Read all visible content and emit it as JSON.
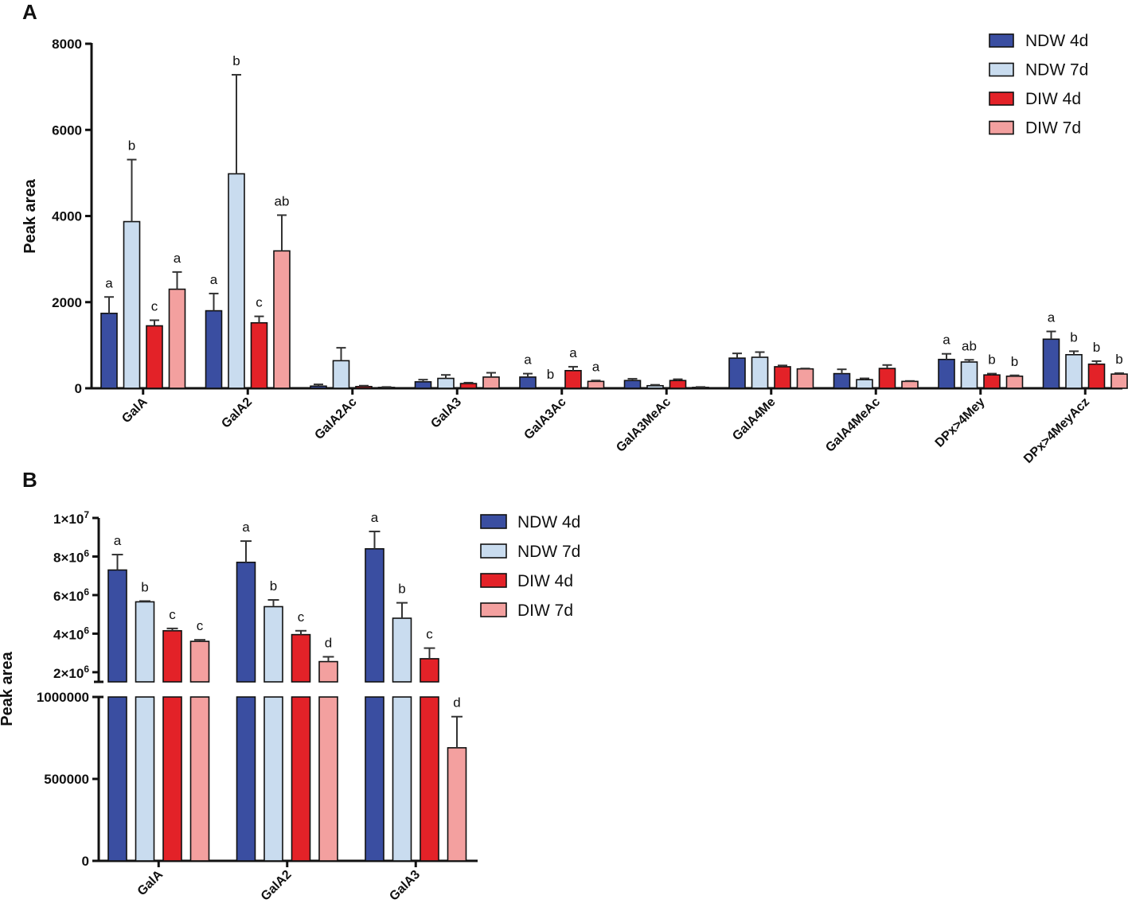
{
  "chart_data": [
    {
      "panel": "A",
      "type": "bar",
      "ylabel": "Peak area",
      "ylim": [
        0,
        8000
      ],
      "yticks": [
        "0",
        "2000",
        "4000",
        "6000",
        "8000"
      ],
      "yticks_values": [
        0,
        2000,
        4000,
        6000,
        8000
      ],
      "categories": [
        "GalA",
        "GalA2",
        "GalA2Ac",
        "GalA3",
        "GalA3Ac",
        "GalA3MeAc",
        "GalA4Me",
        "GalA4MeAc",
        "DPx>4Mey",
        "DPx>4MeyAcz"
      ],
      "legend_position": "top-right",
      "series": [
        {
          "name": "NDW 4d",
          "color": "#3a4ea1",
          "values": [
            1740,
            1800,
            50,
            150,
            260,
            180,
            700,
            340,
            670,
            1140
          ],
          "errors": [
            380,
            400,
            40,
            50,
            80,
            40,
            110,
            100,
            130,
            180
          ],
          "labels": [
            "a",
            "a",
            "",
            "",
            "a",
            "",
            "",
            "",
            "a",
            "a"
          ]
        },
        {
          "name": "NDW 7d",
          "color": "#c9dcef",
          "values": [
            3870,
            4980,
            640,
            230,
            0,
            60,
            720,
            200,
            610,
            780
          ],
          "errors": [
            1440,
            2300,
            300,
            80,
            0,
            20,
            120,
            30,
            50,
            80
          ],
          "labels": [
            "b",
            "b",
            "",
            "",
            "b",
            "",
            "",
            "",
            "ab",
            "b"
          ]
        },
        {
          "name": "DIW 4d",
          "color": "#e32228",
          "values": [
            1450,
            1520,
            40,
            110,
            410,
            180,
            500,
            460,
            310,
            560
          ],
          "errors": [
            130,
            150,
            20,
            20,
            90,
            30,
            30,
            80,
            30,
            70
          ],
          "labels": [
            "c",
            "c",
            "",
            "",
            "a",
            "",
            "",
            "",
            "b",
            "b"
          ]
        },
        {
          "name": "DIW 7d",
          "color": "#f3a09f",
          "values": [
            2300,
            3190,
            20,
            260,
            160,
            20,
            450,
            160,
            280,
            330
          ],
          "errors": [
            400,
            830,
            10,
            100,
            20,
            10,
            10,
            10,
            20,
            20
          ],
          "labels": [
            "a",
            "ab",
            "",
            "",
            "a",
            "",
            "",
            "",
            "b",
            "b"
          ]
        }
      ]
    },
    {
      "panel": "B",
      "type": "bar",
      "ylabel": "Peak area",
      "axis_break": true,
      "lower_ylim": [
        0,
        1000000
      ],
      "upper_ylim": [
        1500000,
        10000000
      ],
      "lower_yticks": [
        "0",
        "500000",
        "1000000"
      ],
      "lower_yticks_values": [
        0,
        500000,
        1000000
      ],
      "upper_yticks": [
        {
          "mant": "2",
          "exp": "6",
          "value": 2000000
        },
        {
          "mant": "4",
          "exp": "6",
          "value": 4000000
        },
        {
          "mant": "6",
          "exp": "6",
          "value": 6000000
        },
        {
          "mant": "8",
          "exp": "6",
          "value": 8000000
        },
        {
          "mant": "1",
          "exp": "7",
          "value": 10000000
        }
      ],
      "categories": [
        "GalA",
        "GalA2",
        "GalA3"
      ],
      "legend_position": "top-right",
      "series": [
        {
          "name": "NDW 4d",
          "color": "#3a4ea1",
          "values": [
            7300000,
            7700000,
            8400000
          ],
          "errors": [
            800000,
            1100000,
            900000
          ],
          "labels": [
            "a",
            "a",
            "a"
          ]
        },
        {
          "name": "NDW 7d",
          "color": "#c9dcef",
          "values": [
            5650000,
            5400000,
            4800000
          ],
          "errors": [
            40000,
            350000,
            800000
          ],
          "labels": [
            "b",
            "b",
            "b"
          ]
        },
        {
          "name": "DIW 4d",
          "color": "#e32228",
          "values": [
            4150000,
            3950000,
            2700000
          ],
          "errors": [
            120000,
            200000,
            550000
          ],
          "labels": [
            "c",
            "c",
            "c"
          ]
        },
        {
          "name": "DIW 7d",
          "color": "#f3a09f",
          "values": [
            3600000,
            2550000,
            690000
          ],
          "errors": [
            80000,
            250000,
            190000
          ],
          "labels": [
            "c",
            "d",
            "d"
          ]
        }
      ]
    }
  ]
}
